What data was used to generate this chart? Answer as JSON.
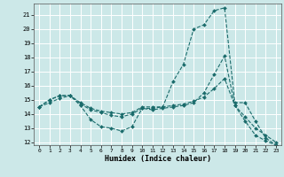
{
  "xlabel": "Humidex (Indice chaleur)",
  "bg_color": "#cce8e8",
  "grid_color": "#ffffff",
  "line_color": "#1a6b6b",
  "line1_x": [
    0,
    1,
    2,
    3,
    4,
    5,
    6,
    7,
    8,
    9,
    10,
    11,
    12,
    13,
    14,
    15,
    16,
    17,
    18,
    19,
    20,
    21,
    22,
    23
  ],
  "line1_y": [
    14.5,
    15.0,
    15.3,
    15.3,
    14.6,
    13.6,
    13.1,
    13.0,
    12.8,
    13.1,
    14.4,
    14.4,
    14.5,
    16.3,
    17.5,
    20.0,
    20.3,
    21.3,
    21.5,
    14.8,
    14.8,
    13.5,
    12.3,
    11.8
  ],
  "line2_x": [
    0,
    1,
    2,
    3,
    4,
    5,
    6,
    7,
    8,
    9,
    10,
    11,
    12,
    13,
    14,
    15,
    16,
    17,
    18,
    19,
    20,
    21,
    22,
    23
  ],
  "line2_y": [
    14.5,
    15.0,
    15.3,
    15.3,
    14.7,
    14.3,
    14.1,
    13.9,
    13.8,
    14.0,
    14.4,
    14.3,
    14.4,
    14.5,
    14.6,
    14.8,
    15.5,
    16.8,
    18.1,
    14.6,
    13.8,
    13.0,
    12.5,
    12.0
  ],
  "line3_x": [
    0,
    1,
    2,
    3,
    4,
    5,
    6,
    7,
    8,
    9,
    10,
    11,
    12,
    13,
    14,
    15,
    16,
    17,
    18,
    19,
    20,
    21,
    22,
    23
  ],
  "line3_y": [
    14.5,
    14.8,
    15.1,
    15.3,
    14.8,
    14.4,
    14.2,
    14.1,
    14.0,
    14.1,
    14.5,
    14.5,
    14.5,
    14.6,
    14.7,
    14.9,
    15.2,
    15.8,
    16.5,
    14.6,
    13.5,
    12.5,
    12.1,
    11.8
  ],
  "ylim_min": 11.8,
  "ylim_max": 21.8,
  "xlim_min": -0.5,
  "xlim_max": 23.5,
  "yticks": [
    12,
    13,
    14,
    15,
    16,
    17,
    18,
    19,
    20,
    21
  ],
  "xticks": [
    0,
    1,
    2,
    3,
    4,
    5,
    6,
    7,
    8,
    9,
    10,
    11,
    12,
    13,
    14,
    15,
    16,
    17,
    18,
    19,
    20,
    21,
    22,
    23
  ],
  "markersize": 2.0,
  "linewidth": 0.8
}
